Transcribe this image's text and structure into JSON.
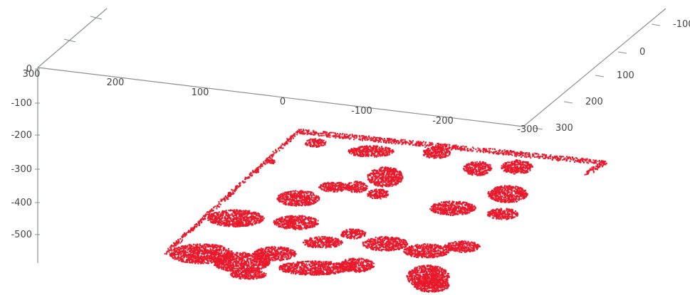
{
  "chart_data": {
    "type": "scatter",
    "subtype": "3d-point-cloud",
    "title": "",
    "xlabel": "",
    "ylabel": "",
    "zlabel": "",
    "series_color": "#e8192c",
    "axes": {
      "x": {
        "ticks": [
          "300",
          "200",
          "100",
          "0",
          "-100",
          "-200",
          "-300"
        ],
        "range": [
          300,
          -300
        ]
      },
      "y": {
        "ticks": [
          "-100",
          "0",
          "100",
          "200",
          "300"
        ],
        "range": [
          -100,
          300
        ]
      },
      "z": {
        "ticks": [
          "0",
          "-100",
          "-200",
          "-300",
          "-400",
          "-500"
        ],
        "range": [
          0,
          -550
        ]
      }
    },
    "series": [
      {
        "regions": [
          {
            "desc": "border-top",
            "x": [
              300,
              -300
            ],
            "y": [
              -100,
              -100
            ],
            "z": -540
          },
          {
            "desc": "border-right",
            "x": [
              -300,
              -300
            ],
            "y": [
              -100,
              300
            ],
            "z": -540
          },
          {
            "desc": "border-left",
            "x": [
              300,
              300
            ],
            "y": [
              -100,
              300
            ],
            "z": -540
          },
          {
            "desc": "border-bottom",
            "x": [
              300,
              -300
            ],
            "y": [
              300,
              300
            ],
            "z": -540
          }
        ]
      }
    ]
  }
}
